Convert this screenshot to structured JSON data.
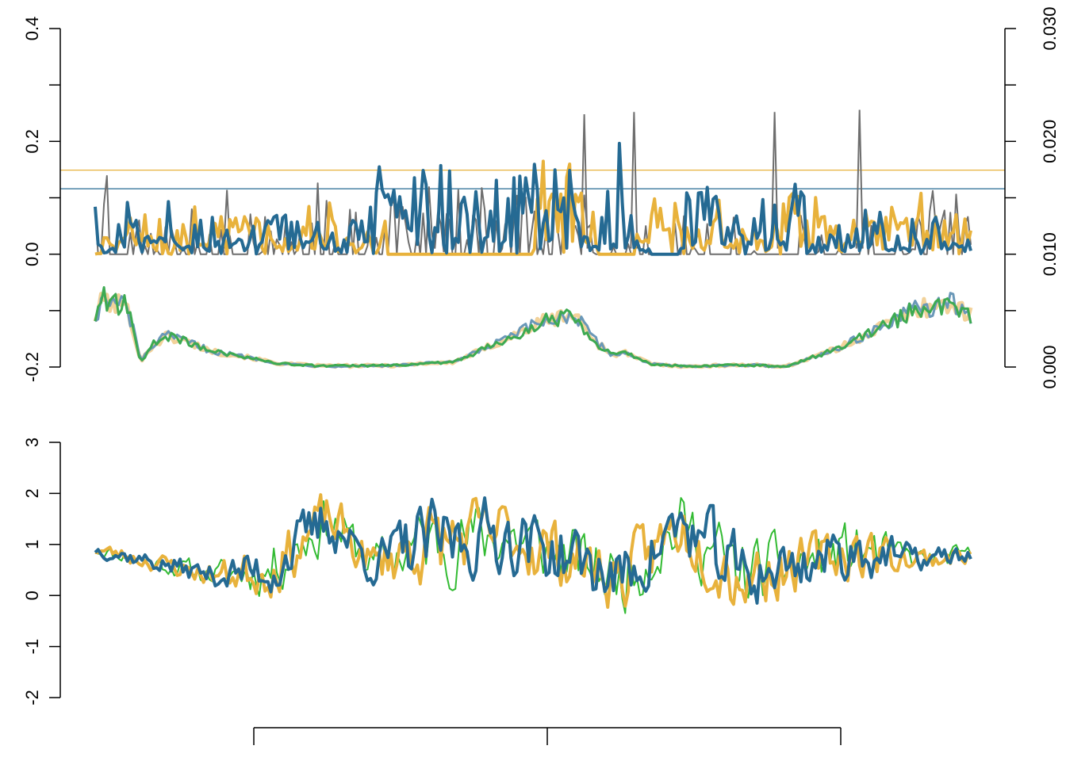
{
  "colors": {
    "orange": "#E8B23C",
    "orange_light": "#F2D29A",
    "blue": "#256A93",
    "blue_light": "#6A98B8",
    "green": "#3DAA52",
    "green_bright": "#33BB33",
    "gray": "#6E6E6E",
    "axis": "#000000"
  },
  "chart_data": [
    {
      "type": "line",
      "panel": "top",
      "title": "",
      "xlabel": "",
      "ylabel": "",
      "x_range": [
        1,
        300
      ],
      "y_left": {
        "range": [
          -0.2,
          0.4
        ],
        "ticks": [
          -0.2,
          0.0,
          0.2,
          0.4
        ],
        "tick_labels": [
          "-0.2",
          "0.0",
          "0.2",
          "0.4"
        ]
      },
      "y_right": {
        "range": [
          0.0,
          0.03
        ],
        "ticks": [
          0.0,
          0.005,
          0.01,
          0.015,
          0.02,
          0.025,
          0.03
        ],
        "tick_labels": [
          "0.000",
          "0.010",
          "0.020",
          "0.030"
        ]
      },
      "hlines": [
        {
          "color": "orange",
          "y": 0.149
        },
        {
          "color": "blue",
          "y": 0.116
        }
      ],
      "spike_series": [
        {
          "color": "gray",
          "axis": "right",
          "baseline": 0.01,
          "width": 2,
          "segments": [
            [
              1,
              0.0122
            ],
            [
              20,
              0.0118
            ],
            [
              40,
              0.0133
            ],
            [
              46,
              0.0157
            ],
            [
              60,
              0.0118
            ],
            [
              75,
              0.0129
            ],
            [
              100,
              0.0113
            ],
            [
              125,
              0.0128
            ],
            [
              150,
              0.0132
            ],
            [
              170,
              0.0138
            ],
            [
              187,
              0.0125
            ],
            [
              200,
              0.0135
            ],
            [
              210,
              0.0132
            ],
            [
              230,
              0.0108
            ],
            [
              260,
              0.0117
            ],
            [
              280,
              0.0115
            ],
            [
              300,
              0.0162
            ]
          ],
          "peaks": [
            [
              46,
              0.0157
            ],
            [
              85,
              0.0128
            ],
            [
              168,
              0.0172
            ],
            [
              170,
              0.0136
            ],
            [
              168,
              0.0112
            ],
            [
              168,
              0.0105
            ],
            [
              168,
              0.0105
            ],
            [
              170,
              0.0105
            ],
            [
              185,
              0.0154
            ],
            [
              185,
              0.0106
            ],
            [
              196,
              0.0225
            ],
            [
              200,
              0.0224
            ],
            [
              232,
              0.0226
            ],
            [
              233,
              0.0222
            ],
            [
              262,
              0.0228
            ],
            [
              262,
              0.0205
            ]
          ]
        },
        {
          "color": "orange",
          "axis": "left",
          "baseline": 0.0,
          "width": 4
        },
        {
          "color": "blue",
          "axis": "left",
          "baseline": 0.0,
          "width": 4
        }
      ],
      "smooth_series": [
        {
          "color": "orange_light",
          "axis": "left",
          "width": 5,
          "values": [
            [
              1,
              -0.112
            ],
            [
              8,
              -0.075
            ],
            [
              14,
              -0.092
            ],
            [
              22,
              -0.085
            ],
            [
              30,
              -0.131
            ],
            [
              35,
              -0.191
            ],
            [
              45,
              -0.16
            ],
            [
              55,
              -0.145
            ],
            [
              70,
              -0.155
            ],
            [
              90,
              -0.173
            ],
            [
              110,
              -0.18
            ],
            [
              140,
              -0.194
            ],
            [
              170,
              -0.198
            ],
            [
              200,
              -0.198
            ],
            [
              230,
              -0.197
            ],
            [
              250,
              -0.193
            ],
            [
              270,
              -0.192
            ],
            [
              290,
              -0.172
            ],
            [
              310,
              -0.15
            ],
            [
              340,
              -0.118
            ],
            [
              360,
              -0.105
            ],
            [
              380,
              -0.16
            ],
            [
              390,
              -0.178
            ],
            [
              400,
              -0.175
            ],
            [
              420,
              -0.195
            ],
            [
              450,
              -0.2
            ],
            [
              480,
              -0.196
            ],
            [
              500,
              -0.197
            ],
            [
              520,
              -0.2
            ],
            [
              540,
              -0.183
            ],
            [
              560,
              -0.168
            ],
            [
              580,
              -0.143
            ],
            [
              600,
              -0.122
            ],
            [
              620,
              -0.096
            ],
            [
              645,
              -0.087
            ],
            [
              660,
              -0.11
            ]
          ]
        },
        {
          "color": "blue_light",
          "axis": "left",
          "width": 3,
          "values": [
            [
              1,
              -0.112
            ],
            [
              8,
              -0.075
            ],
            [
              14,
              -0.092
            ],
            [
              22,
              -0.085
            ],
            [
              30,
              -0.131
            ],
            [
              35,
              -0.191
            ],
            [
              45,
              -0.16
            ],
            [
              55,
              -0.145
            ],
            [
              70,
              -0.155
            ],
            [
              90,
              -0.173
            ],
            [
              110,
              -0.18
            ],
            [
              140,
              -0.194
            ],
            [
              170,
              -0.198
            ],
            [
              200,
              -0.198
            ],
            [
              230,
              -0.197
            ],
            [
              250,
              -0.193
            ],
            [
              270,
              -0.192
            ],
            [
              290,
              -0.172
            ],
            [
              310,
              -0.15
            ],
            [
              340,
              -0.118
            ],
            [
              360,
              -0.105
            ],
            [
              380,
              -0.16
            ],
            [
              390,
              -0.178
            ],
            [
              400,
              -0.175
            ],
            [
              420,
              -0.195
            ],
            [
              450,
              -0.2
            ],
            [
              480,
              -0.196
            ],
            [
              500,
              -0.197
            ],
            [
              520,
              -0.2
            ],
            [
              540,
              -0.183
            ],
            [
              560,
              -0.168
            ],
            [
              580,
              -0.143
            ],
            [
              600,
              -0.122
            ],
            [
              620,
              -0.096
            ],
            [
              645,
              -0.087
            ],
            [
              660,
              -0.11
            ]
          ]
        },
        {
          "color": "green",
          "axis": "left",
          "width": 3,
          "values": [
            [
              1,
              -0.112
            ],
            [
              8,
              -0.075
            ],
            [
              14,
              -0.092
            ],
            [
              22,
              -0.085
            ],
            [
              30,
              -0.131
            ],
            [
              35,
              -0.191
            ],
            [
              45,
              -0.16
            ],
            [
              55,
              -0.145
            ],
            [
              70,
              -0.155
            ],
            [
              90,
              -0.173
            ],
            [
              110,
              -0.18
            ],
            [
              140,
              -0.194
            ],
            [
              170,
              -0.198
            ],
            [
              200,
              -0.198
            ],
            [
              230,
              -0.197
            ],
            [
              250,
              -0.193
            ],
            [
              270,
              -0.192
            ],
            [
              290,
              -0.172
            ],
            [
              310,
              -0.15
            ],
            [
              340,
              -0.118
            ],
            [
              360,
              -0.105
            ],
            [
              380,
              -0.16
            ],
            [
              390,
              -0.178
            ],
            [
              400,
              -0.175
            ],
            [
              420,
              -0.195
            ],
            [
              450,
              -0.2
            ],
            [
              480,
              -0.196
            ],
            [
              500,
              -0.197
            ],
            [
              520,
              -0.2
            ],
            [
              540,
              -0.183
            ],
            [
              560,
              -0.168
            ],
            [
              580,
              -0.143
            ],
            [
              600,
              -0.122
            ],
            [
              620,
              -0.096
            ],
            [
              645,
              -0.087
            ],
            [
              660,
              -0.11
            ]
          ]
        }
      ]
    },
    {
      "type": "line",
      "panel": "bottom",
      "title": "",
      "xlabel": "",
      "ylabel": "",
      "x_range": [
        1,
        300
      ],
      "y_left": {
        "range": [
          -2,
          3
        ],
        "ticks": [
          -2,
          -1,
          0,
          1,
          2,
          3
        ],
        "tick_labels": [
          "-2",
          "-1",
          "0",
          "1",
          "2",
          "3"
        ]
      },
      "x_axis": {
        "ticks": [
          1,
          2,
          3
        ],
        "tick_labels": [
          "",
          "",
          ""
        ]
      },
      "series": [
        {
          "color": "green_bright",
          "width": 2,
          "seed": 11,
          "amp": 1.0
        },
        {
          "color": "orange",
          "width": 4,
          "seed": 23,
          "amp": 1.0
        },
        {
          "color": "blue",
          "width": 4,
          "seed": 37,
          "amp": 1.0
        }
      ],
      "envelope": [
        [
          1,
          0.9,
          0.2
        ],
        [
          40,
          0.4,
          0.35
        ],
        [
          60,
          0.5,
          0.8
        ],
        [
          80,
          1.5,
          0.9
        ],
        [
          95,
          0.6,
          0.6
        ],
        [
          110,
          1.0,
          1.2
        ],
        [
          140,
          1.2,
          1.1
        ],
        [
          160,
          0.8,
          1.0
        ],
        [
          180,
          0.3,
          1.0
        ],
        [
          200,
          1.4,
          1.0
        ],
        [
          220,
          0.4,
          1.2
        ],
        [
          240,
          0.6,
          0.8
        ],
        [
          260,
          0.9,
          0.9
        ],
        [
          280,
          0.7,
          0.4
        ],
        [
          300,
          0.8,
          0.25
        ]
      ]
    }
  ]
}
